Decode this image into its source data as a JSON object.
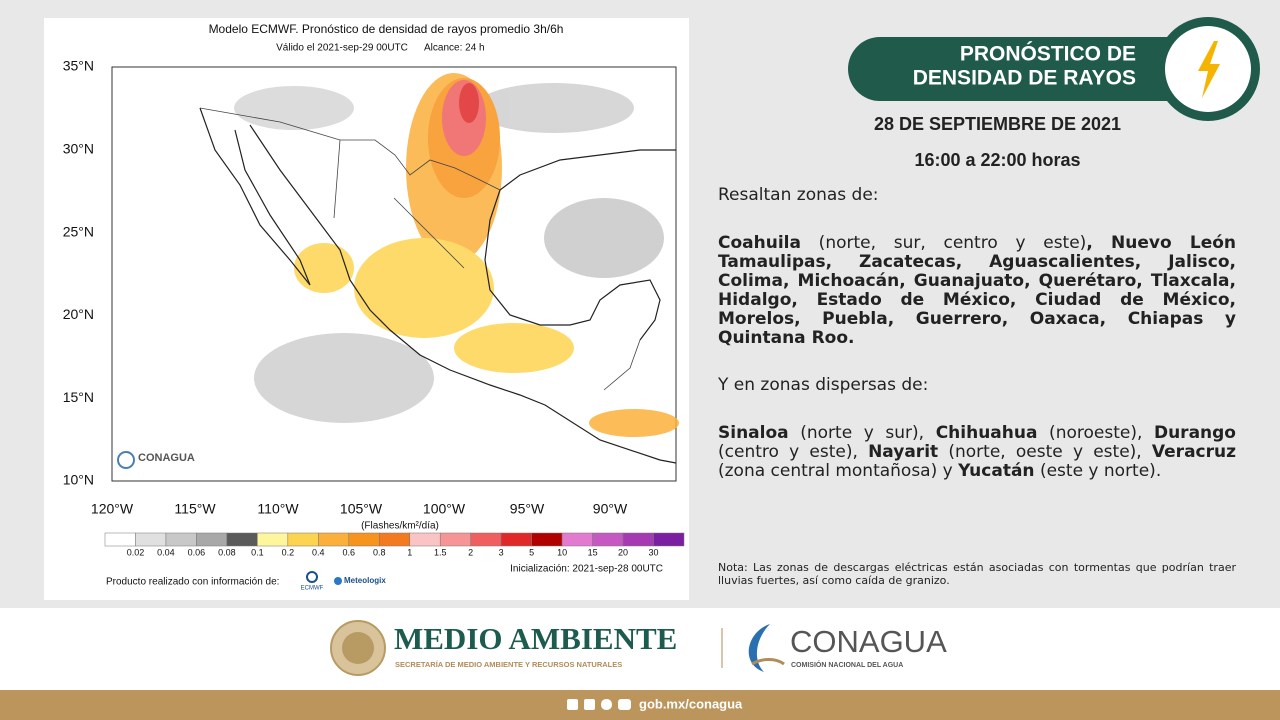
{
  "map": {
    "title": "Modelo ECMWF. Pronóstico de densidad de rayos promedio 3h/6h",
    "valid": "Válido el 2021-sep-29 00UTC",
    "range": "Alcance: 24 h",
    "lat_labels": [
      "35°N",
      "30°N",
      "25°N",
      "20°N",
      "15°N",
      "10°N"
    ],
    "lon_labels": [
      "120°W",
      "115°W",
      "110°W",
      "105°W",
      "100°W",
      "95°W",
      "90°W"
    ],
    "units": "(Flashes/km²/día)",
    "legend_labels": [
      "0.02",
      "0.04",
      "0.06",
      "0.08",
      "0.1",
      "0.2",
      "0.4",
      "0.6",
      "0.8",
      "1",
      "1.5",
      "2",
      "3",
      "5",
      "10",
      "15",
      "20",
      "30"
    ],
    "legend_colors": [
      "#ffffff",
      "#e0e0e0",
      "#c8c8c8",
      "#a8a8a8",
      "#5a5a5a",
      "#fff59d",
      "#fdd451",
      "#fbb03b",
      "#f7941d",
      "#f47a20",
      "#fbc4c4",
      "#f59595",
      "#ef5f5f",
      "#e02828",
      "#b00000",
      "#e27ad0",
      "#c658c2",
      "#a63ab2",
      "#7b1fa2"
    ],
    "credit": "Producto realizado con información de:",
    "logo_ecmwf": "ECMWF",
    "logo_meteologix": "Meteologix",
    "init": "Inicialización: 2021-sep-28 00UTC",
    "watermark": "CONAGUA"
  },
  "header": {
    "title_line1": "PRONÓSTICO DE",
    "title_line2": "DENSIDAD DE RAYOS",
    "date": "28 DE SEPTIEMBRE DE 2021",
    "hours": "16:00 a 22:00 horas"
  },
  "body": {
    "intro": "Resaltan zonas de:",
    "main": [
      {
        "text": "Coahuila",
        "bold": true
      },
      {
        "text": " (norte, sur, centro y este)",
        "bold": false
      },
      {
        "text": ", Nuevo León Tamaulipas, Zacatecas, Aguascalientes, Jalisco, Colima, Michoacán, Guanajuato, Querétaro, Tlaxcala, Hidalgo, Estado de México, Ciudad de México, Morelos, Puebla, Guerrero, Oaxaca, Chiapas y Quintana Roo.",
        "bold": true
      }
    ],
    "intro2": "Y en zonas dispersas de:",
    "dispersed": [
      {
        "text": "Sinaloa",
        "bold": true
      },
      {
        "text": " (norte y sur), ",
        "bold": false
      },
      {
        "text": "Chihuahua",
        "bold": true
      },
      {
        "text": " (noroeste), ",
        "bold": false
      },
      {
        "text": "Durango",
        "bold": true
      },
      {
        "text": " (centro y este), ",
        "bold": false
      },
      {
        "text": "Nayarit",
        "bold": true
      },
      {
        "text": " (norte, oeste y este), ",
        "bold": false
      },
      {
        "text": "Veracruz",
        "bold": true
      },
      {
        "text": " (zona central montañosa) y ",
        "bold": false
      },
      {
        "text": "Yucatán",
        "bold": true
      },
      {
        "text": " (este y norte).",
        "bold": false
      }
    ],
    "note": "Nota: Las zonas de descargas eléctricas están asociadas con tormentas que podrían traer lluvias fuertes, así como caída de granizo."
  },
  "footer": {
    "brand1": "MEDIO AMBIENTE",
    "brand1_sub": "SECRETARÍA DE MEDIO AMBIENTE Y RECURSOS NATURALES",
    "brand2": "CONAGUA",
    "brand2_sub": "COMISIÓN NACIONAL DEL AGUA",
    "url": "gob.mx/conagua"
  }
}
